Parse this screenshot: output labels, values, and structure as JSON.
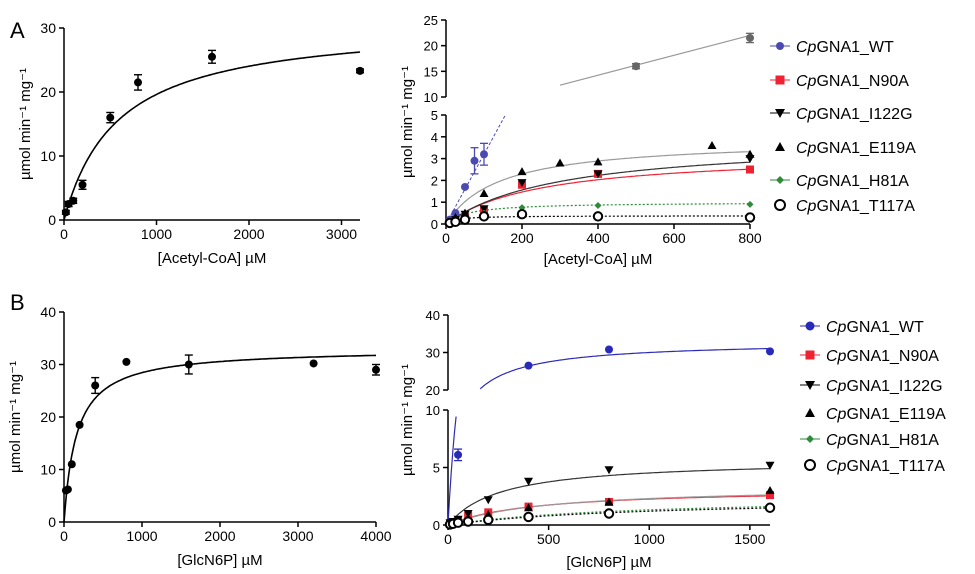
{
  "panel_labels": [
    "A",
    "B"
  ],
  "legend_labels": [
    {
      "prefix": "Cp",
      "name": "GNA1_WT"
    },
    {
      "prefix": "Cp",
      "name": "GNA1_N90A"
    },
    {
      "prefix": "Cp",
      "name": "GNA1_I122G"
    },
    {
      "prefix": "Cp",
      "name": "GNA1_E119A"
    },
    {
      "prefix": "Cp",
      "name": "GNA1_H81A"
    },
    {
      "prefix": "Cp",
      "name": "GNA1_T117A"
    }
  ],
  "colors": {
    "WT": "#4a4ab0",
    "WT_fit_B": "#2a2ab8",
    "N90A": "#ee2233",
    "I122G": "#000000",
    "E119A": "#000000",
    "H81A": "#2e8b3a",
    "T117A": "#000000",
    "gray_fit": "#999999",
    "WT_marker_high_A": "#666666"
  },
  "chart_data": [
    {
      "panel": "A-left",
      "type": "scatter",
      "xlabel": "[Acetyl-CoA] µM",
      "ylabel": "µmol min⁻¹ mg⁻¹",
      "xlim": [
        0,
        3200
      ],
      "ylim": [
        0,
        30
      ],
      "xticks": [
        0,
        1000,
        2000,
        3000
      ],
      "yticks": [
        0,
        10,
        20,
        30
      ],
      "series": [
        {
          "x": [
            20,
            50,
            100,
            200,
            500,
            800,
            1600,
            3200
          ],
          "y": [
            1.2,
            2.5,
            3.0,
            5.5,
            16.0,
            21.5,
            25.5,
            23.3
          ],
          "err": [
            0.3,
            0.4,
            0.4,
            0.7,
            0.8,
            1.2,
            1.0,
            0.3
          ],
          "fit": {
            "vmax": 31,
            "km": 580
          }
        }
      ]
    },
    {
      "panel": "A-right",
      "type": "scatter",
      "xlabel": "[Acetyl-CoA] µM",
      "ylabel": "µmol min⁻¹ mg⁻¹",
      "xlim": [
        0,
        800
      ],
      "ylim_lower": [
        0,
        5
      ],
      "ylim_upper": [
        10,
        25
      ],
      "xticks": [
        0,
        200,
        400,
        600,
        800
      ],
      "yticks_lower": [
        0,
        1,
        2,
        3,
        4,
        5
      ],
      "yticks_upper": [
        10,
        15,
        20,
        25
      ],
      "series": [
        {
          "key": "WT",
          "x": [
            10,
            25,
            50,
            75,
            100,
            500,
            800
          ],
          "y": [
            0.2,
            0.5,
            1.7,
            2.9,
            3.2,
            16,
            21.5
          ],
          "err": [
            0,
            0,
            0,
            0.6,
            0.5,
            0.5,
            0.9
          ],
          "linear": [
            0,
            0.032
          ]
        },
        {
          "key": "N90A",
          "x": [
            10,
            25,
            50,
            100,
            200,
            400,
            800
          ],
          "y": [
            0.05,
            0.12,
            0.3,
            0.6,
            1.8,
            2.3,
            2.5
          ],
          "fit": {
            "vmax": 3.3,
            "km": 250
          }
        },
        {
          "key": "I122G",
          "x": [
            10,
            25,
            50,
            100,
            200,
            400,
            800
          ],
          "y": [
            0.05,
            0.2,
            0.45,
            0.7,
            1.9,
            2.3,
            3.0
          ],
          "fit": {
            "vmax": 3.9,
            "km": 300
          }
        },
        {
          "key": "E119A",
          "x": [
            10,
            25,
            50,
            100,
            200,
            300,
            400,
            700,
            800
          ],
          "y": [
            0.1,
            0.3,
            0.5,
            1.4,
            2.4,
            2.8,
            2.85,
            3.6,
            3.2
          ],
          "fit": {
            "vmax": 3.9,
            "km": 140
          }
        },
        {
          "key": "H81A",
          "x": [
            10,
            25,
            50,
            100,
            200,
            400,
            800
          ],
          "y": [
            0.05,
            0.1,
            0.25,
            0.5,
            0.75,
            0.85,
            0.9
          ],
          "fit": {
            "vmax": 1.0,
            "km": 60
          }
        },
        {
          "key": "T117A",
          "x": [
            10,
            25,
            50,
            100,
            200,
            400,
            800
          ],
          "y": [
            0.05,
            0.1,
            0.2,
            0.35,
            0.45,
            0.35,
            0.3
          ],
          "fit": {
            "vmax": 0.38,
            "km": 25
          }
        }
      ]
    },
    {
      "panel": "B-left",
      "type": "scatter",
      "xlabel": "[GlcN6P] µM",
      "ylabel": "µmol min⁻¹ mg⁻¹",
      "xlim": [
        0,
        4000
      ],
      "ylim": [
        0,
        40
      ],
      "xticks": [
        0,
        1000,
        2000,
        3000,
        4000
      ],
      "yticks": [
        0,
        10,
        20,
        30,
        40
      ],
      "series": [
        {
          "x": [
            25,
            50,
            100,
            200,
            400,
            800,
            1600,
            3200,
            4000
          ],
          "y": [
            6,
            6.2,
            11,
            18.5,
            26,
            30.5,
            30,
            30.2,
            29
          ],
          "err": [
            0,
            0,
            0,
            0,
            1.5,
            0,
            1.8,
            0,
            1.0
          ],
          "fit": {
            "vmax": 33,
            "km": 160
          }
        }
      ]
    },
    {
      "panel": "B-right",
      "type": "scatter",
      "xlabel": "[GlcN6P] µM",
      "ylabel": "µmol min⁻¹ mg⁻¹",
      "xlim": [
        0,
        1600
      ],
      "ylim_lower": [
        0,
        10
      ],
      "ylim_upper": [
        20,
        40
      ],
      "xticks": [
        0,
        500,
        1000,
        1500
      ],
      "yticks_lower": [
        0,
        5,
        10
      ],
      "yticks_upper": [
        20,
        30,
        40
      ],
      "series": [
        {
          "key": "WT",
          "x": [
            50,
            400,
            800,
            1600
          ],
          "y": [
            6.1,
            26.5,
            30.8,
            30.3
          ],
          "err": [
            0.5,
            0,
            0,
            0
          ],
          "fit": {
            "vmax": 33,
            "km": 100
          }
        },
        {
          "key": "N90A",
          "x": [
            10,
            25,
            50,
            100,
            200,
            400,
            800,
            1600
          ],
          "y": [
            0.1,
            0.2,
            0.4,
            0.8,
            1.1,
            1.6,
            2.0,
            2.6
          ],
          "fit": {
            "vmax": 3.2,
            "km": 420
          }
        },
        {
          "key": "I122G",
          "x": [
            10,
            25,
            50,
            100,
            200,
            400,
            800,
            1600
          ],
          "y": [
            0.2,
            0.3,
            0.5,
            1.0,
            2.2,
            3.8,
            4.8,
            5.2
          ],
          "fit": {
            "vmax": 5.7,
            "km": 260
          }
        },
        {
          "key": "E119A",
          "x": [
            10,
            25,
            50,
            100,
            200,
            400,
            800,
            1600
          ],
          "y": [
            0.1,
            0.2,
            0.3,
            0.6,
            0.9,
            1.5,
            2.0,
            3.0
          ],
          "fit": {
            "vmax": 3.4,
            "km": 480
          }
        },
        {
          "key": "H81A",
          "x": [
            10,
            25,
            50,
            100,
            200,
            400,
            800,
            1600
          ],
          "y": [
            0.05,
            0.1,
            0.15,
            0.3,
            0.5,
            0.8,
            1.1,
            1.6
          ],
          "fit": {
            "vmax": 2.5,
            "km": 900
          }
        },
        {
          "key": "T117A",
          "x": [
            10,
            25,
            50,
            100,
            200,
            400,
            800,
            1600
          ],
          "y": [
            0.05,
            0.1,
            0.2,
            0.3,
            0.45,
            0.7,
            1.0,
            1.5
          ],
          "fit": {
            "vmax": 2.4,
            "km": 1000
          }
        }
      ]
    }
  ]
}
